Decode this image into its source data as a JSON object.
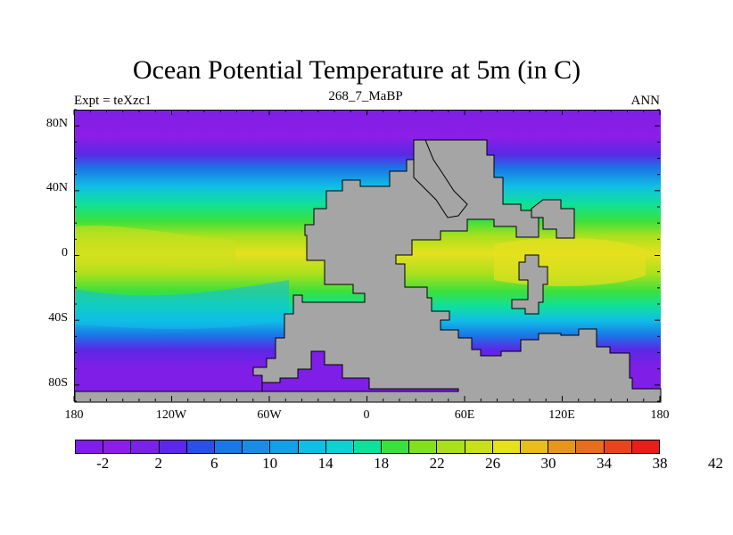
{
  "title": "Ocean Potential Temperature at 5m (in C)",
  "subtitle_center": "268_7_MaBP",
  "subtitle_left": "Expt = teXzc1",
  "subtitle_right": "ANN",
  "map": {
    "lat_labels": [
      "80N",
      "40N",
      "0",
      "40S",
      "80S"
    ],
    "lon_labels": [
      "180",
      "120W",
      "60W",
      "0",
      "60E",
      "120E",
      "180"
    ],
    "land_color": "#a5a5a5",
    "colormap": [
      "#7f1ee6",
      "#8c1ee6",
      "#7a22e6",
      "#5a28e6",
      "#2a50e6",
      "#1a78e6",
      "#1a8ce6",
      "#14a0e6",
      "#10bee6",
      "#10d0d0",
      "#10e09a",
      "#3ce03c",
      "#82e01e",
      "#aae01e",
      "#c8e01e",
      "#e6e01e",
      "#e6be1e",
      "#e6961e",
      "#e66e1e",
      "#e6461e",
      "#e61e1e"
    ]
  },
  "colorbar": {
    "colors": [
      "#7f1ee6",
      "#8c1ee6",
      "#7a22e6",
      "#5a28e6",
      "#2a50e6",
      "#1a78e6",
      "#1a8ce6",
      "#14a0e6",
      "#10bee6",
      "#10d0d0",
      "#10e09a",
      "#3ce03c",
      "#82e01e",
      "#aae01e",
      "#c8e01e",
      "#e6e01e",
      "#e6be1e",
      "#e6961e",
      "#e66e1e",
      "#e6461e",
      "#e61e1e"
    ],
    "labels": [
      "-2",
      "2",
      "6",
      "10",
      "14",
      "18",
      "22",
      "26",
      "30",
      "34",
      "38",
      "42"
    ]
  }
}
